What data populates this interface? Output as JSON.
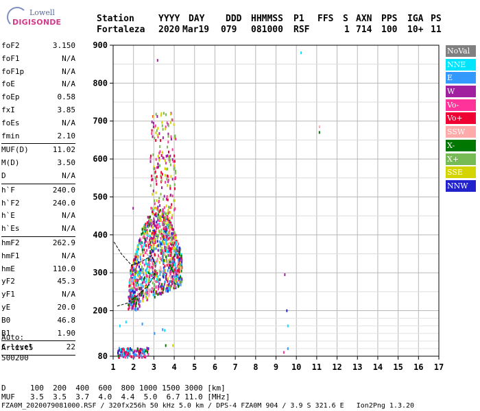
{
  "logo": {
    "line1": "Lowell",
    "line2": "DIGISONDE"
  },
  "header": {
    "labels": [
      "Station",
      "YYYY",
      "DAY",
      "DDD",
      "HHMMSS",
      "P1",
      "FFS",
      "S",
      "AXN",
      "PPS",
      "IGA",
      "PS"
    ],
    "values": [
      "Fortaleza",
      "2020",
      "Mar19",
      "079",
      "081000",
      "RSF",
      "",
      "1",
      "714",
      "100",
      "10+",
      "11"
    ]
  },
  "params": [
    {
      "name": "foF2",
      "value": "3.150"
    },
    {
      "name": "foF1",
      "value": "N/A"
    },
    {
      "name": "foF1p",
      "value": "N/A"
    },
    {
      "name": "foE",
      "value": "N/A"
    },
    {
      "name": "foEp",
      "value": "0.58"
    },
    {
      "name": "fxI",
      "value": "3.85"
    },
    {
      "name": "foEs",
      "value": "N/A"
    },
    {
      "name": "fmin",
      "value": "2.10"
    },
    {
      "sep": true
    },
    {
      "name": "MUF(D)",
      "value": "11.02"
    },
    {
      "name": "M(D)",
      "value": "3.50"
    },
    {
      "name": "D",
      "value": "N/A"
    },
    {
      "sep": true
    },
    {
      "name": "h`F",
      "value": "240.0"
    },
    {
      "name": "h`F2",
      "value": "240.0"
    },
    {
      "name": "h`E",
      "value": "N/A"
    },
    {
      "name": "h`Es",
      "value": "N/A"
    },
    {
      "sep": true
    },
    {
      "name": "hmF2",
      "value": "262.9"
    },
    {
      "name": "hmF1",
      "value": "N/A"
    },
    {
      "name": "hmE",
      "value": "110.0"
    },
    {
      "name": "yF2",
      "value": "45.3"
    },
    {
      "name": "yF1",
      "value": "N/A"
    },
    {
      "name": "yE",
      "value": "20.0"
    },
    {
      "name": "B0",
      "value": "46.8"
    },
    {
      "name": "B1",
      "value": "1.90"
    },
    {
      "sep": true
    },
    {
      "name": "C-level",
      "value": "22"
    },
    {
      "sep": true
    }
  ],
  "auto": {
    "line1": "Auto:",
    "line2": "Artist5",
    "line3": "500200"
  },
  "legend": [
    {
      "label": "NoVal",
      "color": "#808080"
    },
    {
      "label": "NNE",
      "color": "#00e5ff"
    },
    {
      "label": "E",
      "color": "#3399ff"
    },
    {
      "label": "W",
      "color": "#a020a0"
    },
    {
      "label": "Vo-",
      "color": "#ff3399"
    },
    {
      "label": "Vo+",
      "color": "#ee0033"
    },
    {
      "label": "SSW",
      "color": "#ffaaaa"
    },
    {
      "label": "X-",
      "color": "#007700"
    },
    {
      "label": "X+",
      "color": "#77bb55"
    },
    {
      "label": "SSE",
      "color": "#d4d400"
    },
    {
      "label": "NNW",
      "color": "#2222cc"
    }
  ],
  "footer": {
    "row1_label": "D",
    "row1_values": "100  200  400  600  800 1000 1500 3000 [km]",
    "row2_label": "MUF",
    "row2_values": "3.5  3.5  3.7  4.0  4.4  5.0  6.7 11.0 [MHz]",
    "row3": "FZA0M_2020079081000.RSF / 320fx256h 50 kHz 5.0 km / DPS-4 FZA0M 904 / 3.9 S 321.6 E   Ion2Png 1.3.20"
  },
  "chart_data": {
    "type": "scatter",
    "xlim": [
      1,
      17
    ],
    "ylim": [
      80,
      900
    ],
    "xticks": [
      1,
      2,
      3,
      4,
      5,
      6,
      7,
      8,
      9,
      10,
      11,
      12,
      13,
      14,
      15,
      16,
      17
    ],
    "yticks": [
      80,
      200,
      300,
      400,
      500,
      600,
      700,
      800,
      900
    ],
    "grid": true,
    "clusters": [
      {
        "name": "main",
        "xmin": 1.75,
        "xmax": 4.35,
        "ymin": 210,
        "ymax": 460,
        "n": 1100,
        "colors": [
          "#ee0033",
          "#ff3399",
          "#a020a0",
          "#d4d400",
          "#3399ff",
          "#77bb55",
          "#2222cc",
          "#007700",
          "#00e5ff",
          "#ffaaaa"
        ]
      },
      {
        "name": "upper",
        "xmin": 2.8,
        "xmax": 4.05,
        "ymin": 360,
        "ymax": 725,
        "n": 260,
        "colors": [
          "#d4d400",
          "#a020a0",
          "#ee0033",
          "#ff3399",
          "#77bb55"
        ]
      },
      {
        "name": "E-region",
        "xmin": 1.2,
        "xmax": 2.7,
        "ymin": 80,
        "ymax": 105,
        "n": 110,
        "colors": [
          "#007700",
          "#3399ff",
          "#a020a0",
          "#ee0033",
          "#00e5ff",
          "#2222cc",
          "#ff3399"
        ]
      },
      {
        "name": "low",
        "xmin": 1.7,
        "xmax": 2.3,
        "ymin": 205,
        "ymax": 245,
        "n": 40,
        "colors": [
          "#ee0033",
          "#3399ff",
          "#a020a0",
          "#007700"
        ]
      }
    ],
    "points": [
      {
        "x": 3.15,
        "y": 860,
        "color": "#a020a0"
      },
      {
        "x": 10.2,
        "y": 880,
        "color": "#00e5ff"
      },
      {
        "x": 11.1,
        "y": 670,
        "color": "#007700"
      },
      {
        "x": 11.1,
        "y": 685,
        "color": "#ffaaaa"
      },
      {
        "x": 9.4,
        "y": 295,
        "color": "#a020a0"
      },
      {
        "x": 9.5,
        "y": 200,
        "color": "#2222cc"
      },
      {
        "x": 9.55,
        "y": 160,
        "color": "#00e5ff"
      },
      {
        "x": 9.55,
        "y": 100,
        "color": "#3399ff"
      },
      {
        "x": 9.35,
        "y": 90,
        "color": "#ff3399"
      },
      {
        "x": 3.4,
        "y": 150,
        "color": "#3399ff"
      },
      {
        "x": 3.5,
        "y": 148,
        "color": "#00e5ff"
      },
      {
        "x": 3.0,
        "y": 140,
        "color": "#3399ff"
      },
      {
        "x": 2.4,
        "y": 165,
        "color": "#3399ff"
      },
      {
        "x": 1.6,
        "y": 170,
        "color": "#00e5ff"
      },
      {
        "x": 1.3,
        "y": 160,
        "color": "#00e5ff"
      },
      {
        "x": 3.9,
        "y": 108,
        "color": "#d4d400"
      },
      {
        "x": 3.55,
        "y": 108,
        "color": "#007700"
      },
      {
        "x": 1.95,
        "y": 470,
        "color": "#a020a0"
      },
      {
        "x": 2.4,
        "y": 415,
        "color": "#007700"
      }
    ],
    "profile": [
      {
        "x": 1.2,
        "y": 212
      },
      {
        "x": 1.7,
        "y": 220
      },
      {
        "x": 2.2,
        "y": 240
      },
      {
        "x": 2.7,
        "y": 265
      },
      {
        "x": 3.0,
        "y": 290
      },
      {
        "x": 3.1,
        "y": 320
      },
      {
        "x": 2.9,
        "y": 345
      },
      {
        "x": 2.4,
        "y": 330
      },
      {
        "x": 1.9,
        "y": 320
      },
      {
        "x": 1.4,
        "y": 350
      },
      {
        "x": 1.0,
        "y": 385
      }
    ]
  }
}
